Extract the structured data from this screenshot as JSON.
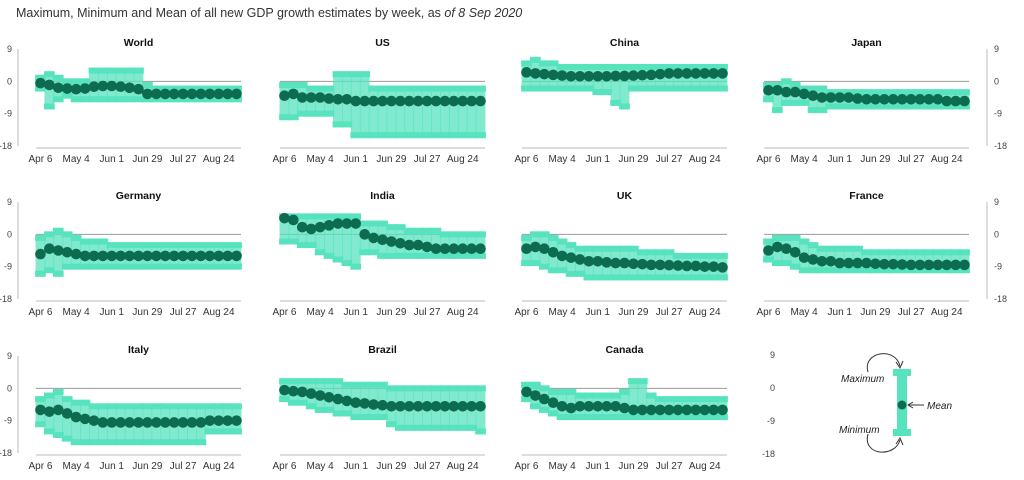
{
  "header": {
    "title_prefix": "Maximum, Minimum and Mean of all new GDP growth estimates by week, as ",
    "title_date": "of 8 Sep 2020"
  },
  "legend": {
    "maximum": "Maximum",
    "mean": "Mean",
    "minimum": "Minimum"
  },
  "colors": {
    "band": "#57e3bd",
    "mean": "#0d6b4f",
    "zero_line": "#9a9a9a",
    "axis": "#bbbbbb"
  },
  "chart_data": {
    "type": "range-band-with-mean",
    "week_count": 23,
    "x_tick_labels": [
      "Apr 6",
      "May 4",
      "Jun 1",
      "Jun 29",
      "Jul 27",
      "Aug 24"
    ],
    "x_tick_week_index": [
      0,
      4,
      8,
      12,
      16,
      20
    ],
    "ylim": [
      -18,
      9
    ],
    "y_ticks": [
      9,
      0,
      -9,
      -18
    ],
    "panels": [
      {
        "name": "World",
        "mean": [
          -0.5,
          -1,
          -1.8,
          -2,
          -2.2,
          -2,
          -1.5,
          -1.3,
          -1.3,
          -1.5,
          -1.8,
          -2.2,
          -3.5,
          -3.5,
          -3.5,
          -3.5,
          -3.5,
          -3.5,
          -3.5,
          -3.5,
          -3.5,
          -3.5,
          -3.5
        ],
        "max": [
          1,
          2,
          1,
          0,
          0,
          0,
          3,
          3,
          3,
          3,
          3,
          3,
          -1,
          -2,
          -2,
          -2,
          -2,
          -2,
          -2,
          -2,
          -2,
          -2,
          -2
        ],
        "min": [
          -2,
          -7,
          -5,
          -4,
          -5,
          -5,
          -5,
          -5,
          -5,
          -5,
          -5,
          -5,
          -5,
          -5,
          -5,
          -5,
          -5,
          -5,
          -5,
          -5,
          -5,
          -5,
          -5
        ]
      },
      {
        "name": "US",
        "mean": [
          -4,
          -3.5,
          -4.5,
          -4.5,
          -4.5,
          -4.8,
          -5,
          -5,
          -5.5,
          -5.5,
          -5.5,
          -5.5,
          -5.5,
          -5.5,
          -5.5,
          -5.5,
          -5.5,
          -5.5,
          -5.5,
          -5.5,
          -5.5,
          -5.5,
          -5.5
        ],
        "max": [
          -1,
          -1,
          -1,
          -2,
          -2,
          -2,
          2,
          2,
          2,
          2,
          -2,
          -2,
          -2,
          -2,
          -2,
          -2,
          -2,
          -2,
          -2,
          -2,
          -2,
          -2,
          -2
        ],
        "min": [
          -10,
          -10,
          -9,
          -9,
          -9,
          -9,
          -12,
          -12,
          -15,
          -15,
          -15,
          -15,
          -15,
          -15,
          -15,
          -15,
          -15,
          -15,
          -15,
          -15,
          -15,
          -15,
          -15
        ]
      },
      {
        "name": "China",
        "mean": [
          2.5,
          2.2,
          2,
          1.8,
          1.6,
          1.4,
          1.4,
          1.4,
          1.4,
          1.4,
          1.5,
          1.5,
          1.6,
          1.7,
          1.8,
          2,
          2.2,
          2.2,
          2.2,
          2.2,
          2.2,
          2.2,
          2.2
        ],
        "max": [
          5,
          6,
          5,
          5,
          4,
          4,
          4,
          4,
          4,
          4,
          4,
          4,
          4,
          4,
          4,
          4,
          4,
          4,
          4,
          4,
          4,
          4,
          4
        ],
        "min": [
          -2,
          -2,
          -2,
          -2,
          -2,
          -2,
          -2,
          -2,
          -3,
          -3,
          -6,
          -7,
          -2,
          -2,
          -2,
          -2,
          -2,
          -2,
          -2,
          -2,
          -2,
          -2,
          -2
        ]
      },
      {
        "name": "Japan",
        "mean": [
          -2.5,
          -2.5,
          -3,
          -3,
          -3.5,
          -4,
          -4.5,
          -4.5,
          -4.5,
          -4.5,
          -4.8,
          -5,
          -5,
          -5,
          -5,
          -5,
          -5,
          -5,
          -5,
          -5,
          -5.5,
          -5.5,
          -5.5
        ],
        "max": [
          -1,
          -1,
          0,
          -1,
          -2,
          -2,
          -2,
          -3,
          -3,
          -3,
          -3,
          -3,
          -3,
          -3,
          -3,
          -3,
          -3,
          -3,
          -3,
          -3,
          -3,
          -3,
          -3
        ],
        "min": [
          -5,
          -8,
          -6,
          -6,
          -6,
          -8,
          -8,
          -7,
          -7,
          -7,
          -7,
          -7,
          -7,
          -7,
          -7,
          -7,
          -7,
          -7,
          -7,
          -7,
          -7,
          -7,
          -7
        ]
      },
      {
        "name": "Germany",
        "mean": [
          -5.5,
          -4,
          -4.5,
          -5,
          -5.5,
          -6,
          -6,
          -6,
          -6,
          -6,
          -6,
          -6,
          -6,
          -6,
          -6,
          -6,
          -6,
          -6,
          -6,
          -6,
          -6,
          -6,
          -6
        ],
        "max": [
          -1,
          0,
          1,
          0,
          -1,
          -2,
          -2,
          -2,
          -3,
          -3,
          -3,
          -3,
          -3,
          -3,
          -3,
          -3,
          -3,
          -3,
          -3,
          -3,
          -3,
          -3,
          -3
        ],
        "min": [
          -11,
          -10,
          -11,
          -9,
          -9,
          -9,
          -9,
          -9,
          -9,
          -9,
          -9,
          -9,
          -9,
          -9,
          -9,
          -9,
          -9,
          -9,
          -9,
          -9,
          -9,
          -9,
          -9
        ]
      },
      {
        "name": "India",
        "mean": [
          4.5,
          4,
          2,
          1.5,
          2,
          2.5,
          3,
          3,
          3,
          0,
          -1,
          -1.5,
          -2,
          -2.5,
          -3,
          -3,
          -3.5,
          -4,
          -4,
          -4,
          -4,
          -4,
          -4
        ],
        "max": [
          5,
          5,
          5,
          5,
          5,
          5,
          5,
          5,
          5,
          3,
          3,
          3,
          2,
          2,
          1,
          1,
          1,
          1,
          0,
          0,
          0,
          0,
          0
        ],
        "min": [
          -2,
          -2,
          -3,
          -3,
          -5,
          -6,
          -7,
          -8,
          -9,
          -5,
          -5,
          -6,
          -6,
          -6,
          -6,
          -6,
          -6,
          -6,
          -6,
          -6,
          -6,
          -6,
          -6
        ]
      },
      {
        "name": "UK",
        "mean": [
          -4,
          -3.5,
          -4,
          -5,
          -6,
          -6.5,
          -7,
          -7.5,
          -7.5,
          -7.8,
          -8,
          -8,
          -8.2,
          -8.3,
          -8.5,
          -8.5,
          -8.6,
          -8.7,
          -8.8,
          -8.8,
          -9,
          -9,
          -9.2
        ],
        "max": [
          -1,
          0,
          0,
          -1,
          -2,
          -3,
          -4,
          -4,
          -4,
          -4,
          -4,
          -4,
          -4,
          -5,
          -5,
          -5,
          -5,
          -6,
          -6,
          -6,
          -6,
          -6,
          -6
        ],
        "min": [
          -8,
          -8,
          -9,
          -10,
          -10,
          -11,
          -11,
          -12,
          -12,
          -12,
          -12,
          -12,
          -12,
          -12,
          -12,
          -12,
          -12,
          -12,
          -12,
          -12,
          -12,
          -12,
          -12
        ]
      },
      {
        "name": "France",
        "mean": [
          -4.5,
          -3.5,
          -4,
          -5,
          -6.5,
          -7,
          -7.5,
          -7.5,
          -8,
          -8,
          -8,
          -8,
          -8.2,
          -8.3,
          -8.3,
          -8.4,
          -8.5,
          -8.5,
          -8.5,
          -8.5,
          -8.5,
          -8.5,
          -8.5
        ],
        "max": [
          -2,
          -1,
          -1,
          -1,
          -2,
          -3,
          -4,
          -4,
          -4,
          -4,
          -4,
          -5,
          -5,
          -5,
          -5,
          -5,
          -5,
          -5,
          -5,
          -5,
          -5,
          -5,
          -5
        ],
        "min": [
          -7,
          -8,
          -8,
          -9,
          -10,
          -10,
          -10,
          -10,
          -10,
          -10,
          -10,
          -10,
          -10,
          -10,
          -10,
          -10,
          -10,
          -10,
          -10,
          -10,
          -10,
          -10,
          -10
        ]
      },
      {
        "name": "Italy",
        "mean": [
          -6,
          -6.5,
          -6,
          -7,
          -8,
          -8.5,
          -9,
          -9.5,
          -9.5,
          -9.5,
          -9.5,
          -9.5,
          -9.5,
          -9.5,
          -9.5,
          -9.5,
          -9.5,
          -9.5,
          -9.5,
          -9,
          -9,
          -9,
          -9
        ],
        "max": [
          -3,
          -2,
          -1,
          -3,
          -4,
          -4,
          -5,
          -5,
          -5,
          -5,
          -5,
          -5,
          -5,
          -5,
          -5,
          -5,
          -5,
          -5,
          -5,
          -5,
          -5,
          -5,
          -5
        ],
        "min": [
          -10,
          -12,
          -13,
          -14,
          -15,
          -15,
          -15,
          -15,
          -15,
          -15,
          -15,
          -15,
          -15,
          -15,
          -15,
          -15,
          -15,
          -15,
          -15,
          -12,
          -12,
          -12,
          -12
        ]
      },
      {
        "name": "Brazil",
        "mean": [
          -0.5,
          -0.8,
          -1,
          -1.5,
          -2,
          -2.5,
          -3,
          -3.5,
          -4,
          -4.2,
          -4.5,
          -4.7,
          -5,
          -5,
          -5,
          -5,
          -5,
          -5,
          -5,
          -5,
          -5,
          -5,
          -5
        ],
        "max": [
          2,
          2,
          2,
          2,
          2,
          2,
          2,
          1,
          1,
          1,
          1,
          1,
          0,
          0,
          0,
          0,
          0,
          0,
          0,
          0,
          0,
          0,
          0
        ],
        "min": [
          -3,
          -4,
          -4,
          -5,
          -6,
          -6,
          -7,
          -7,
          -8,
          -8,
          -8,
          -8,
          -10,
          -11,
          -11,
          -11,
          -11,
          -11,
          -11,
          -11,
          -11,
          -11,
          -12
        ]
      },
      {
        "name": "Canada",
        "mean": [
          -1,
          -2,
          -3,
          -4,
          -5,
          -5.5,
          -5,
          -5,
          -5,
          -5,
          -5,
          -5.5,
          -6,
          -6,
          -6,
          -6,
          -6,
          -6,
          -6,
          -6,
          -6,
          -6,
          -6
        ],
        "max": [
          1,
          1,
          0,
          -1,
          -1,
          -1,
          -2,
          -2,
          -2,
          -2,
          -2,
          -1,
          2,
          2,
          -2,
          -3,
          -3,
          -3,
          -3,
          -3,
          -3,
          -3,
          -3
        ],
        "min": [
          -3,
          -5,
          -6,
          -7,
          -8,
          -8,
          -8,
          -8,
          -8,
          -8,
          -8,
          -8,
          -8,
          -8,
          -8,
          -8,
          -8,
          -8,
          -8,
          -8,
          -8,
          -8,
          -8
        ]
      }
    ]
  }
}
